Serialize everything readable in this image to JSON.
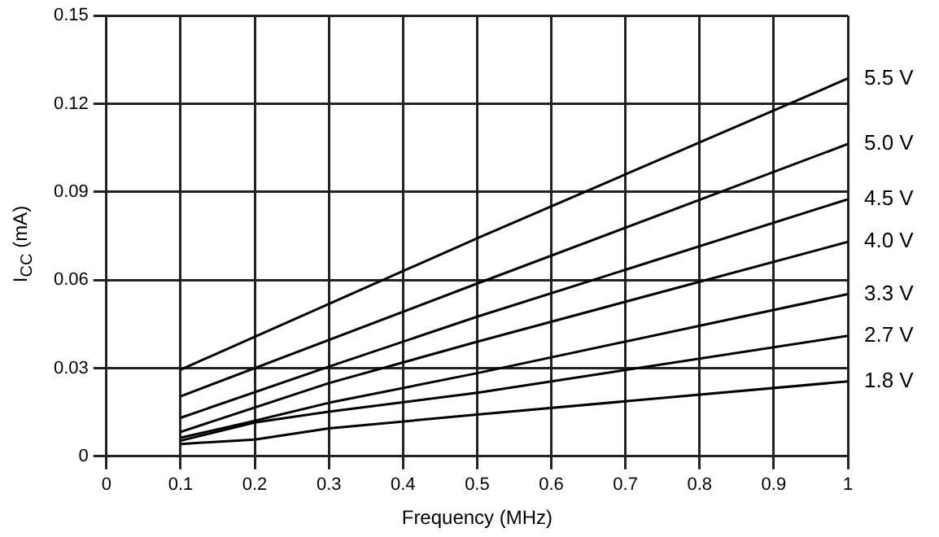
{
  "chart_data": {
    "type": "line",
    "xlabel": "Frequency (MHz)",
    "ylabel": "I$_{CC}$ (mA)",
    "xlim": [
      0,
      1
    ],
    "xticks": [
      0,
      0.1,
      0.2,
      0.3,
      0.4,
      0.5,
      0.6,
      0.7,
      0.8,
      0.9,
      1
    ],
    "ylim": [
      0,
      0.15
    ],
    "yticks": [
      0,
      0.03,
      0.06,
      0.09,
      0.12,
      0.15
    ],
    "grid": true,
    "legend": false,
    "marker": "none",
    "line_style": "solid",
    "series": [
      {
        "name": "5.5 V",
        "color": "#000000",
        "x": [
          0.1,
          0.5,
          1
        ],
        "values": [
          0.0295,
          0.0742,
          0.1286
        ]
      },
      {
        "name": "5.0 V",
        "color": "#000000",
        "x": [
          0.1,
          0.5,
          1
        ],
        "values": [
          0.0204,
          0.0588,
          0.1063
        ]
      },
      {
        "name": "4.5 V",
        "color": "#000000",
        "x": [
          0.1,
          0.3,
          0.5,
          1
        ],
        "values": [
          0.0131,
          0.0305,
          0.0475,
          0.0875
        ]
      },
      {
        "name": "4.0 V",
        "color": "#000000",
        "x": [
          0.1,
          0.3,
          0.5,
          1
        ],
        "values": [
          0.0083,
          0.0249,
          0.039,
          0.073
        ]
      },
      {
        "name": "3.3 V",
        "color": "#000000",
        "x": [
          0.1,
          0.2,
          0.3,
          0.5,
          1
        ],
        "values": [
          0.0063,
          0.0121,
          0.0182,
          0.0283,
          0.0552
        ]
      },
      {
        "name": "2.7 V",
        "color": "#000000",
        "x": [
          0.1,
          0.2,
          0.3,
          0.5,
          1
        ],
        "values": [
          0.0053,
          0.0115,
          0.0152,
          0.0216,
          0.041
        ]
      },
      {
        "name": "1.8 V",
        "color": "#000000",
        "x": [
          0.1,
          0.2,
          0.3,
          0.5,
          1
        ],
        "values": [
          0.0042,
          0.0057,
          0.0095,
          0.0142,
          0.0255
        ]
      }
    ]
  }
}
